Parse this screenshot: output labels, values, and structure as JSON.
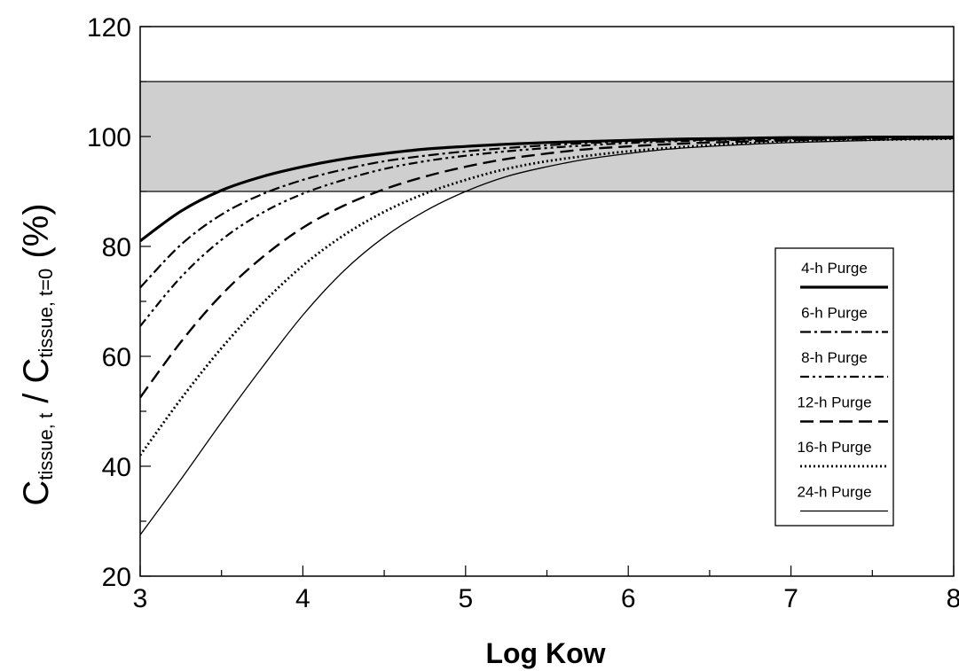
{
  "chart_data": {
    "type": "line",
    "title": "",
    "xlabel": "Log Kow",
    "ylabel": {
      "main_1": "C",
      "sub_1": "tissue, t",
      "separator": " / ",
      "main_2": "C",
      "sub_2": "tissue, t=0",
      "suffix": " (%)"
    },
    "xlim": [
      3,
      8
    ],
    "ylim": [
      20,
      120
    ],
    "xticks": [
      3,
      4,
      5,
      6,
      7,
      8
    ],
    "yticks": [
      20,
      40,
      60,
      80,
      100,
      120
    ],
    "x_minor_step": 0.5,
    "y_minor_step": 10,
    "grid": false,
    "legend_position": "right",
    "band": {
      "ymin": 90,
      "ymax": 110,
      "color": "#cfcfcf"
    },
    "x": [
      3.0,
      3.25,
      3.5,
      3.75,
      4.0,
      4.25,
      4.5,
      4.75,
      5.0,
      5.25,
      5.5,
      5.75,
      6.0,
      6.25,
      6.5,
      6.75,
      7.0,
      7.25,
      7.5,
      7.75,
      8.0
    ],
    "series": [
      {
        "name": "4-h Purge",
        "style": "solid-thick",
        "values": [
          81,
          86.4,
          90.2,
          92.7,
          94.5,
          95.9,
          96.9,
          97.7,
          98.2,
          98.6,
          98.9,
          99.1,
          99.3,
          99.5,
          99.6,
          99.7,
          99.8,
          99.8,
          99.9,
          99.9,
          99.9
        ]
      },
      {
        "name": "6-h Purge",
        "style": "dash-dot",
        "values": [
          72.5,
          80.3,
          85.8,
          89.5,
          92.1,
          94.0,
          95.5,
          96.5,
          97.3,
          97.9,
          98.4,
          98.8,
          99.1,
          99.3,
          99.4,
          99.5,
          99.6,
          99.7,
          99.8,
          99.8,
          99.9
        ]
      },
      {
        "name": "8-h Purge",
        "style": "dash-dot-dot",
        "values": [
          65.5,
          74.4,
          81.2,
          86.1,
          89.6,
          92.1,
          94.1,
          95.5,
          96.5,
          97.3,
          97.9,
          98.4,
          98.8,
          99.1,
          99.3,
          99.4,
          99.5,
          99.6,
          99.7,
          99.8,
          99.8
        ]
      },
      {
        "name": "12-h Purge",
        "style": "dashed",
        "values": [
          52.5,
          62.6,
          71.2,
          78.0,
          83.4,
          87.4,
          90.4,
          92.7,
          94.5,
          95.9,
          96.9,
          97.7,
          98.2,
          98.6,
          98.9,
          99.1,
          99.3,
          99.5,
          99.6,
          99.7,
          99.8
        ]
      },
      {
        "name": "16-h Purge",
        "style": "dotted",
        "values": [
          42,
          52.2,
          61.5,
          69.6,
          76.5,
          82.0,
          86.3,
          89.6,
          92.1,
          94.1,
          95.5,
          96.5,
          97.3,
          97.9,
          98.4,
          98.8,
          99.1,
          99.3,
          99.4,
          99.5,
          99.6
        ]
      },
      {
        "name": "24-h Purge",
        "style": "solid-thin",
        "values": [
          27.5,
          37.6,
          48.0,
          58.0,
          67.5,
          75.5,
          81.7,
          86.4,
          90.0,
          92.7,
          94.5,
          95.9,
          96.9,
          97.7,
          98.2,
          98.6,
          98.9,
          99.1,
          99.3,
          99.5,
          99.6
        ]
      }
    ]
  }
}
